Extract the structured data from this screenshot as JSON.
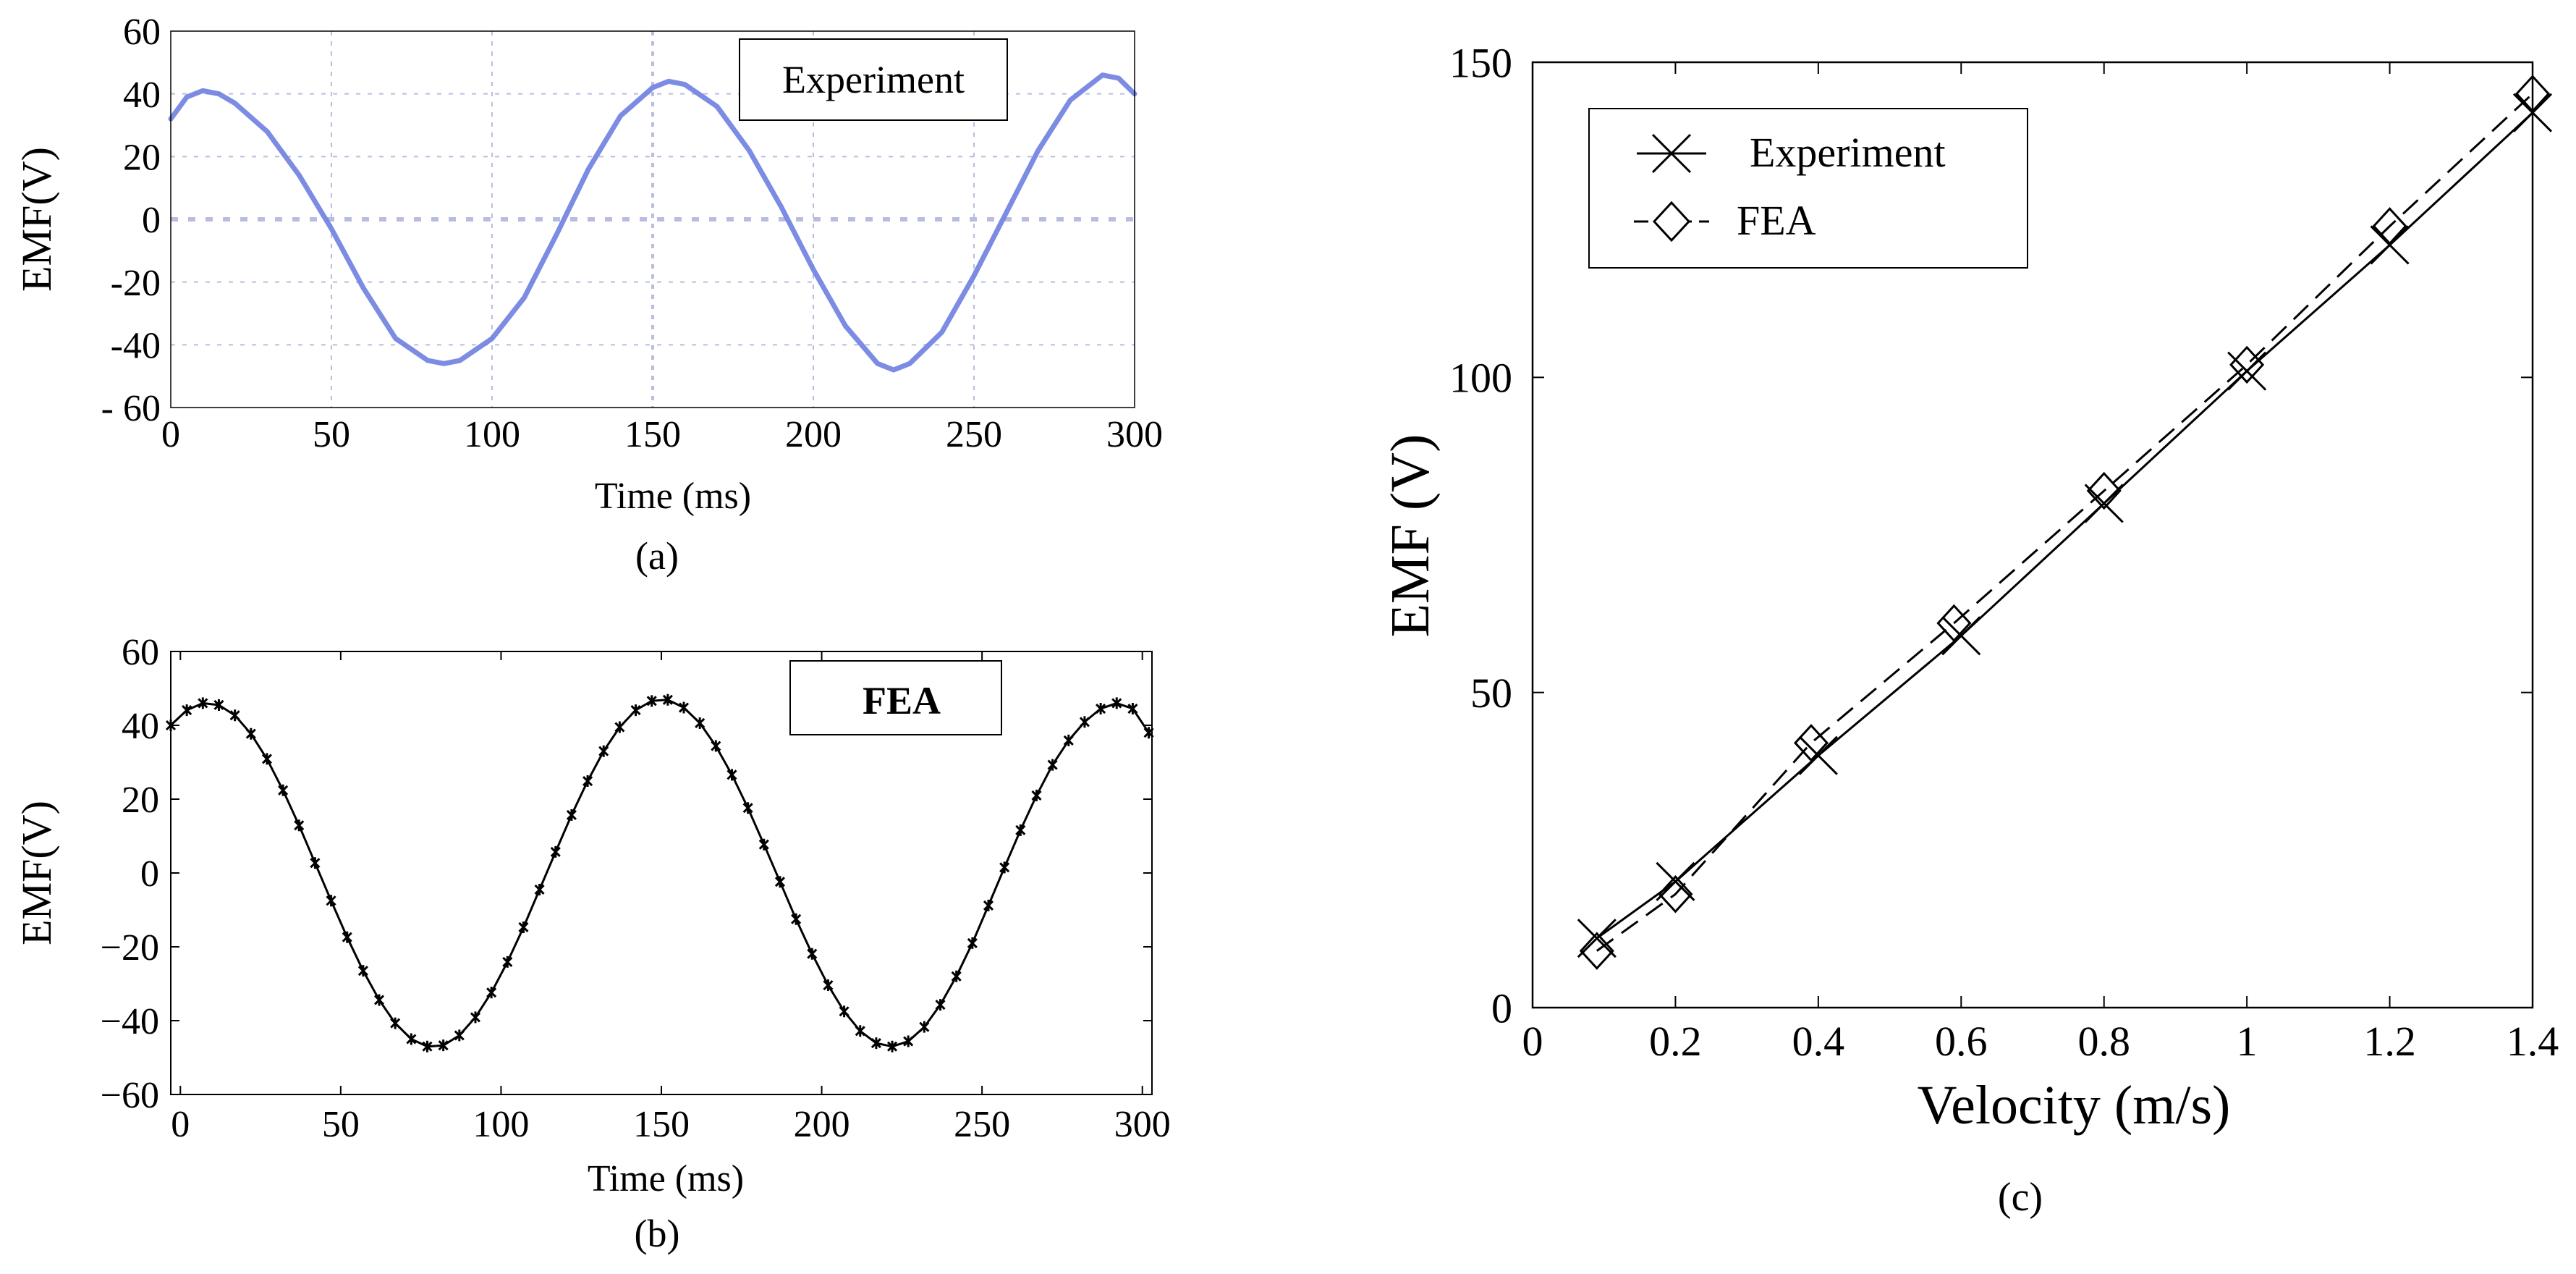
{
  "figure": {
    "panel_a_caption": "(a)",
    "panel_b_caption": "(b)",
    "panel_c_caption": "(c)"
  },
  "colors": {
    "experiment_trace": "#6f7fe0",
    "fea_trace": "#000000",
    "grid": "#b8bde0",
    "axis": "#000000"
  },
  "chart_data": [
    {
      "id": "a",
      "type": "line",
      "title": "",
      "legend": "Experiment",
      "legend_position": "top-right",
      "xlabel": "Time (ms)",
      "ylabel": "EMF(V)",
      "xlim": [
        0,
        300
      ],
      "ylim": [
        -60,
        60
      ],
      "xticks": [
        0,
        50,
        100,
        150,
        200,
        250,
        300
      ],
      "xtick_labels": [
        "0",
        "50",
        "100",
        "150",
        "200",
        "250",
        "300"
      ],
      "yticks": [
        60,
        40,
        20,
        0,
        -20,
        -40,
        -60
      ],
      "ytick_labels": [
        "60",
        "40",
        "20",
        "0",
        "-20",
        "-40",
        "- 60"
      ],
      "grid": true,
      "series": [
        {
          "name": "Experiment",
          "x": [
            0,
            5,
            10,
            15,
            20,
            30,
            40,
            50,
            60,
            70,
            80,
            85,
            90,
            100,
            110,
            120,
            130,
            140,
            150,
            155,
            160,
            170,
            180,
            190,
            200,
            210,
            220,
            225,
            230,
            240,
            250,
            260,
            270,
            280,
            290,
            295,
            300
          ],
          "y": [
            32,
            39,
            41,
            40,
            37,
            28,
            14,
            -3,
            -22,
            -38,
            -45,
            -46,
            -45,
            -38,
            -25,
            -5,
            16,
            33,
            42,
            44,
            43,
            36,
            22,
            4,
            -16,
            -34,
            -46,
            -48,
            -46,
            -36,
            -18,
            2,
            22,
            38,
            46,
            45,
            40
          ]
        }
      ]
    },
    {
      "id": "b",
      "type": "line",
      "title": "",
      "legend": "FEA",
      "legend_position": "top-right",
      "xlabel": "Time (ms)",
      "ylabel": "EMF(V)",
      "xlim": [
        -3,
        303
      ],
      "ylim": [
        -60,
        60
      ],
      "xticks": [
        0,
        50,
        100,
        150,
        200,
        250,
        300
      ],
      "xtick_labels": [
        "0",
        "50",
        "100",
        "150",
        "200",
        "250",
        "300"
      ],
      "yticks": [
        60,
        40,
        20,
        0,
        -20,
        -40,
        -60
      ],
      "ytick_labels": [
        "60",
        "40",
        "20",
        "0",
        "−20",
        "−40",
        "−60"
      ],
      "grid": false,
      "series": [
        {
          "name": "FEA",
          "x": [
            -3,
            2,
            7,
            12,
            17,
            22,
            27,
            32,
            37,
            42,
            47,
            52,
            57,
            62,
            67,
            72,
            77,
            82,
            87,
            92,
            97,
            102,
            107,
            112,
            117,
            122,
            127,
            132,
            137,
            142,
            147,
            152,
            157,
            162,
            167,
            172,
            177,
            182,
            187,
            192,
            197,
            202,
            207,
            212,
            217,
            222,
            227,
            232,
            237,
            242,
            247,
            252,
            257,
            262,
            267,
            272,
            277,
            282,
            287,
            292,
            297,
            302
          ],
          "y": [
            40.0,
            44.1,
            46.0,
            45.5,
            42.7,
            37.7,
            30.9,
            22.4,
            12.9,
            2.7,
            -7.5,
            -17.4,
            -26.5,
            -34.4,
            -40.7,
            -45.0,
            -47.0,
            -46.7,
            -44.0,
            -39.1,
            -32.4,
            -24.1,
            -14.7,
            -4.5,
            5.7,
            15.7,
            24.9,
            33.0,
            39.5,
            44.1,
            46.6,
            46.9,
            44.8,
            40.6,
            34.4,
            26.6,
            17.6,
            7.7,
            -2.4,
            -12.5,
            -21.9,
            -30.4,
            -37.5,
            -42.8,
            -46.1,
            -47.0,
            -45.6,
            -41.7,
            -35.7,
            -28.0,
            -19.0,
            -8.8,
            1.5,
            11.6,
            21.0,
            29.3,
            35.9,
            40.9,
            44.5,
            46.0,
            44.5,
            38.0
          ]
        }
      ]
    },
    {
      "id": "c",
      "type": "line",
      "title": "",
      "xlabel": "Velocity (m/s)",
      "ylabel": "EMF (V)",
      "xlim": [
        0,
        1.4
      ],
      "ylim": [
        0,
        150
      ],
      "xticks": [
        0,
        0.2,
        0.4,
        0.6,
        0.8,
        1,
        1.2,
        1.4
      ],
      "xtick_labels": [
        "0",
        "0.2",
        "0.4",
        "0.6",
        "0.8",
        "1",
        "1.2",
        "1.4"
      ],
      "yticks": [
        0,
        50,
        100,
        150
      ],
      "ytick_labels": [
        "0",
        "50",
        "100",
        "150"
      ],
      "grid": false,
      "legend_position": "top-left",
      "series": [
        {
          "name": "Experiment",
          "marker": "x",
          "line": "solid",
          "x": [
            0.09,
            0.2,
            0.4,
            0.6,
            0.8,
            1.0,
            1.2,
            1.4
          ],
          "y": [
            11,
            20,
            40,
            59,
            80,
            101,
            121,
            142
          ]
        },
        {
          "name": "FEA",
          "marker": "diamond",
          "line": "dashed",
          "x": [
            0.09,
            0.2,
            0.39,
            0.59,
            0.8,
            1.0,
            1.2,
            1.4
          ],
          "y": [
            9,
            18,
            42,
            61,
            82,
            102,
            124,
            145
          ]
        }
      ]
    }
  ]
}
